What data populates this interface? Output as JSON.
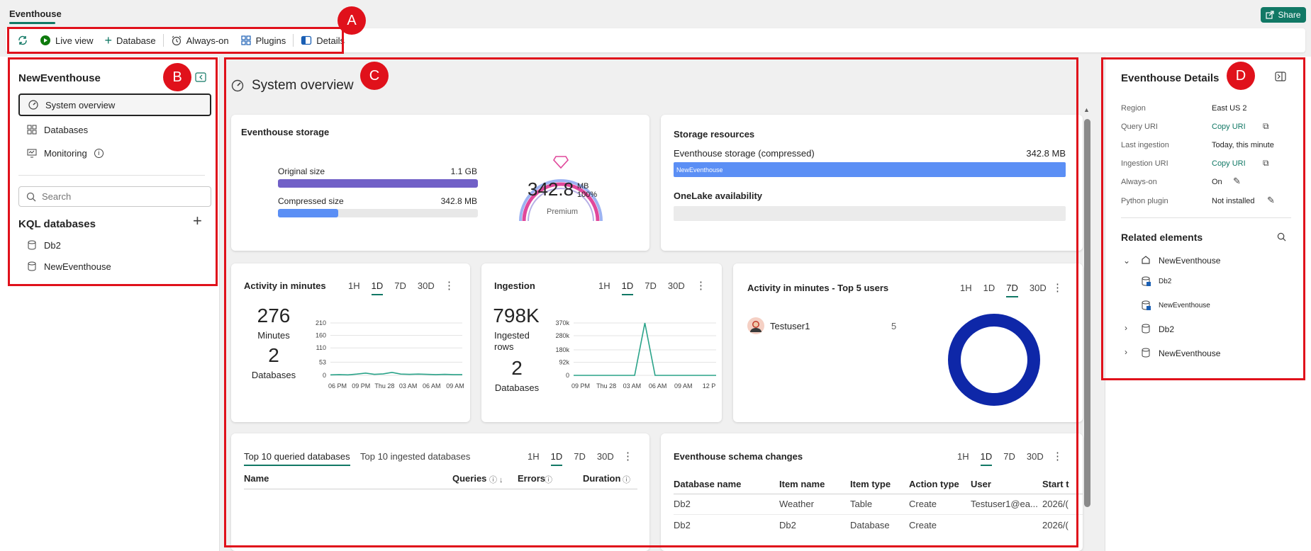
{
  "header": {
    "tab": "Eventhouse",
    "share_label": "Share"
  },
  "toolbar": {
    "live_view": "Live view",
    "database": "Database",
    "always_on": "Always-on",
    "plugins": "Plugins",
    "details": "Details"
  },
  "callouts": {
    "a": "A",
    "b": "B",
    "c": "C",
    "d": "D"
  },
  "sidebar": {
    "title": "NewEventhouse",
    "items": [
      {
        "label": "System overview"
      },
      {
        "label": "Databases"
      },
      {
        "label": "Monitoring"
      }
    ],
    "search_placeholder": "Search",
    "kql_header": "KQL databases",
    "databases": [
      {
        "label": "Db2"
      },
      {
        "label": "NewEventhouse"
      }
    ]
  },
  "main": {
    "title": "System overview",
    "storage": {
      "title": "Eventhouse storage",
      "original_label": "Original size",
      "original_value": "1.1 GB",
      "compressed_label": "Compressed size",
      "compressed_value": "342.8 MB",
      "compressed_fraction": 0.3,
      "gauge_value": "342.8",
      "gauge_unit": "MB",
      "gauge_pct": "100%",
      "gauge_tier": "Premium"
    },
    "resources": {
      "title": "Storage resources",
      "compressed_label": "Eventhouse storage (compressed)",
      "compressed_value": "342.8 MB",
      "bar_label": "NewEventhouse",
      "onelake_label": "OneLake availability"
    },
    "time_tabs": [
      "1H",
      "1D",
      "7D",
      "30D"
    ],
    "activity": {
      "title": "Activity in minutes",
      "big_value": "276",
      "big_label": "Minutes",
      "db_value": "2",
      "db_label": "Databases",
      "active_tab": "1D"
    },
    "ingestion": {
      "title": "Ingestion",
      "big_value": "798K",
      "big_label1": "Ingested",
      "big_label2": "rows",
      "db_value": "2",
      "db_label": "Databases",
      "active_tab": "1D"
    },
    "top_users": {
      "title": "Activity in minutes - Top 5 users",
      "user": "Testuser1",
      "value": "5",
      "active_tab": "7D"
    },
    "queried": {
      "tab1": "Top 10 queried databases",
      "tab2": "Top 10 ingested databases",
      "col_name": "Name",
      "col_queries": "Queries",
      "col_errors": "Errors",
      "col_duration": "Duration",
      "active_tab": "1D"
    },
    "schema": {
      "title": "Eventhouse schema changes",
      "columns": [
        "Database name",
        "Item name",
        "Item type",
        "Action type",
        "User",
        "Start t"
      ],
      "rows": [
        [
          "Db2",
          "Weather",
          "Table",
          "Create",
          "Testuser1@ea...",
          "2026/("
        ],
        [
          "Db2",
          "Db2",
          "Database",
          "Create",
          "",
          "2026/("
        ]
      ],
      "active_tab": "1D"
    }
  },
  "details": {
    "title": "Eventhouse Details",
    "rows": [
      {
        "label": "Region",
        "value": "East US 2"
      },
      {
        "label": "Query URI",
        "value": "Copy URI"
      },
      {
        "label": "Last ingestion",
        "value": "Today, this minute"
      },
      {
        "label": "Ingestion URI",
        "value": "Copy URI"
      },
      {
        "label": "Always-on",
        "value": "On"
      },
      {
        "label": "Python plugin",
        "value": "Not installed"
      }
    ],
    "related_title": "Related elements",
    "tree": [
      {
        "label": "NewEventhouse"
      },
      {
        "label": "Db2"
      },
      {
        "label": "NewEventhouse"
      },
      {
        "label": "Db2"
      },
      {
        "label": "NewEventhouse"
      }
    ]
  },
  "chart_data": [
    {
      "type": "line",
      "title": "Activity in minutes",
      "x_ticks": [
        "06 PM",
        "09 PM",
        "Thu 28",
        "03 AM",
        "06 AM",
        "09 AM"
      ],
      "y_ticks": [
        0,
        53,
        110,
        160,
        210
      ],
      "ylim": [
        0,
        210
      ],
      "grid": true,
      "series": [
        {
          "values": [
            2,
            3,
            2,
            5,
            9,
            4,
            6,
            12,
            5,
            4,
            5,
            4,
            3,
            4,
            3,
            3
          ]
        }
      ]
    },
    {
      "type": "line",
      "title": "Ingestion",
      "x_ticks": [
        "09 PM",
        "Thu 28",
        "03 AM",
        "06 AM",
        "09 AM",
        "12 P"
      ],
      "y_ticks": [
        "0",
        "92k",
        "180k",
        "280k",
        "370k"
      ],
      "y_tick_values": [
        0,
        92000,
        180000,
        280000,
        370000
      ],
      "ylim": [
        0,
        370000
      ],
      "grid": true,
      "series": [
        {
          "values": [
            0,
            0,
            0,
            0,
            0,
            0,
            0,
            370000,
            0,
            0,
            0,
            0,
            0,
            0,
            0
          ]
        }
      ]
    },
    {
      "type": "pie",
      "title": "Activity in minutes - Top 5 users",
      "categories": [
        "Testuser1"
      ],
      "values": [
        5
      ],
      "colors": [
        "#0e27a8"
      ]
    }
  ]
}
